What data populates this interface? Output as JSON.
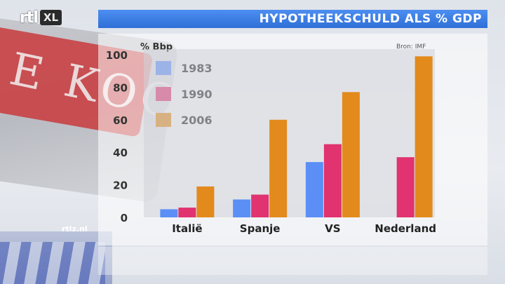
{
  "header": {
    "logo_rtl": "rtl",
    "logo_xl": "XL",
    "title": "HYPOTHEEKSCHULD ALS % GDP"
  },
  "footer": {
    "website": "rtlz.nl"
  },
  "colors": {
    "title_bar": "#3b7fe6",
    "s1983": "#5b8ff6",
    "s1990": "#e0336f",
    "s2006": "#e38a1c"
  },
  "chart_data": {
    "type": "bar",
    "title": "HYPOTHEEKSCHULD ALS % GDP",
    "ylabel": "% Bbp",
    "source": "Bron: IMF",
    "categories": [
      "Italië",
      "Spanje",
      "VS",
      "Nederland"
    ],
    "ylim": [
      0,
      100
    ],
    "yticks": [
      0,
      20,
      40,
      60,
      80,
      100
    ],
    "legend_position": "top-left",
    "grid": false,
    "series": [
      {
        "name": "1983",
        "color": "#5b8ff6",
        "values": [
          5,
          11,
          34,
          0
        ]
      },
      {
        "name": "1990",
        "color": "#e0336f",
        "values": [
          6,
          14,
          45,
          37
        ]
      },
      {
        "name": "2006",
        "color": "#e38a1c",
        "values": [
          19,
          60,
          77,
          99
        ]
      }
    ]
  }
}
